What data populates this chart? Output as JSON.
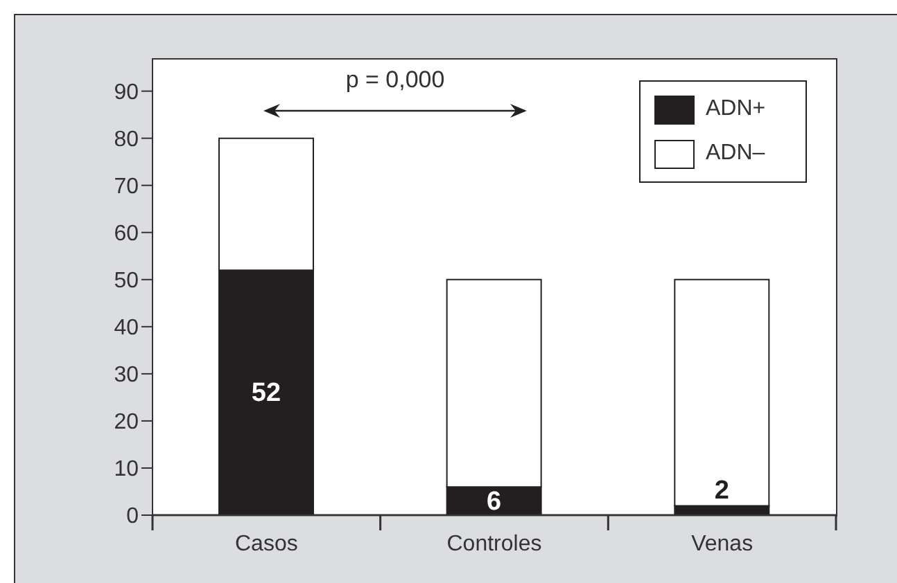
{
  "chart_data": {
    "type": "bar",
    "stacked": true,
    "categories": [
      "Casos",
      "Controles",
      "Venas"
    ],
    "series": [
      {
        "name": "ADN+",
        "color": "#231f20",
        "values": [
          52,
          6,
          2
        ],
        "value_labels": [
          "52",
          "6",
          "2"
        ]
      },
      {
        "name": "ADN–",
        "color": "#ffffff",
        "values": [
          28,
          44,
          48
        ]
      }
    ],
    "ylim": [
      0,
      97
    ],
    "yticks": [
      0,
      10,
      20,
      30,
      40,
      50,
      60,
      70,
      80,
      90
    ],
    "legend": "top right",
    "annotations": [
      "p = 0,000"
    ]
  }
}
